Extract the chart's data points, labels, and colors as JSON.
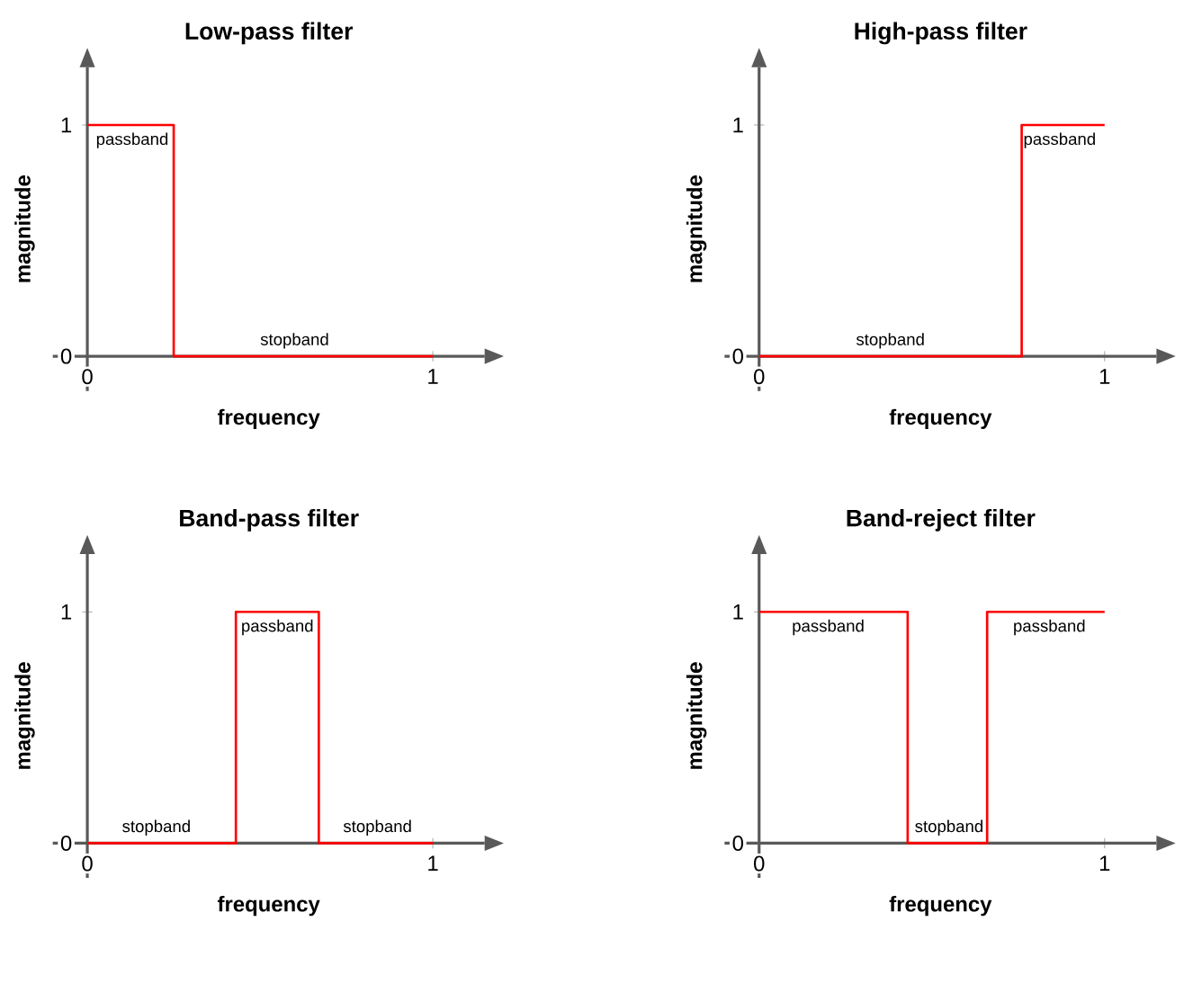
{
  "chart_data": [
    {
      "type": "step",
      "title": "Low-pass filter",
      "xlabel": "frequency",
      "ylabel": "magnitude",
      "xlim": [
        -0.1,
        1.15
      ],
      "ylim": [
        -0.15,
        1.25
      ],
      "xticks": [
        0,
        1
      ],
      "yticks": [
        0,
        1
      ],
      "series": [
        {
          "color": "#ff0000",
          "x": [
            0,
            0.25,
            1
          ],
          "values": [
            1,
            0,
            0
          ]
        }
      ],
      "annotations": [
        {
          "text": "passband",
          "x": 0.13,
          "y": 1
        },
        {
          "text": "stopband",
          "x": 0.6,
          "y": 0
        }
      ]
    },
    {
      "type": "step",
      "title": "High-pass filter",
      "xlabel": "frequency",
      "ylabel": "magnitude",
      "xlim": [
        -0.1,
        1.15
      ],
      "ylim": [
        -0.15,
        1.25
      ],
      "xticks": [
        0,
        1
      ],
      "yticks": [
        0,
        1
      ],
      "series": [
        {
          "color": "#ff0000",
          "x": [
            0,
            0.76,
            1
          ],
          "values": [
            0,
            1,
            1
          ]
        }
      ],
      "annotations": [
        {
          "text": "stopband",
          "x": 0.38,
          "y": 0
        },
        {
          "text": "passband",
          "x": 0.87,
          "y": 1
        }
      ]
    },
    {
      "type": "step",
      "title": "Band-pass filter",
      "xlabel": "frequency",
      "ylabel": "magnitude",
      "xlim": [
        -0.1,
        1.15
      ],
      "ylim": [
        -0.15,
        1.25
      ],
      "xticks": [
        0,
        1
      ],
      "yticks": [
        0,
        1
      ],
      "series": [
        {
          "color": "#ff0000",
          "x": [
            0,
            0.43,
            0.67,
            1
          ],
          "values": [
            0,
            1,
            0,
            0
          ]
        }
      ],
      "annotations": [
        {
          "text": "stopband",
          "x": 0.2,
          "y": 0
        },
        {
          "text": "passband",
          "x": 0.55,
          "y": 1
        },
        {
          "text": "stopband",
          "x": 0.84,
          "y": 0
        }
      ]
    },
    {
      "type": "step",
      "title": "Band-reject filter",
      "xlabel": "frequency",
      "ylabel": "magnitude",
      "xlim": [
        -0.1,
        1.15
      ],
      "ylim": [
        -0.15,
        1.25
      ],
      "xticks": [
        0,
        1
      ],
      "yticks": [
        0,
        1
      ],
      "series": [
        {
          "color": "#ff0000",
          "x": [
            0,
            0.43,
            0.66,
            1
          ],
          "values": [
            1,
            0,
            1,
            1
          ]
        }
      ],
      "annotations": [
        {
          "text": "passband",
          "x": 0.2,
          "y": 1
        },
        {
          "text": "stopband",
          "x": 0.55,
          "y": 0
        },
        {
          "text": "passband",
          "x": 0.84,
          "y": 1
        }
      ]
    }
  ]
}
